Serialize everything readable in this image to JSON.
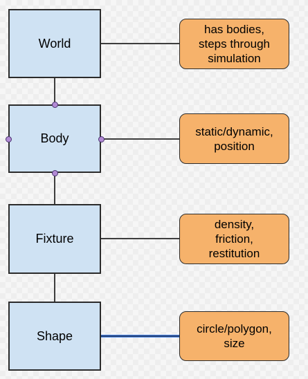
{
  "entities": [
    {
      "label": "World"
    },
    {
      "label": "Body"
    },
    {
      "label": "Fixture"
    },
    {
      "label": "Shape"
    }
  ],
  "notes": [
    {
      "text": "has bodies,\nsteps through\nsimulation"
    },
    {
      "text": "static/dynamic,\nposition"
    },
    {
      "text": "density,\nfriction,\nrestitution"
    },
    {
      "text": "circle/polygon,\nsize"
    }
  ],
  "colors": {
    "entity_fill": "#cfe2f3",
    "note_fill": "#f6b26b",
    "line": "#000000",
    "selected_line": "#4a86e8",
    "handle_fill": "#b28ad4"
  }
}
